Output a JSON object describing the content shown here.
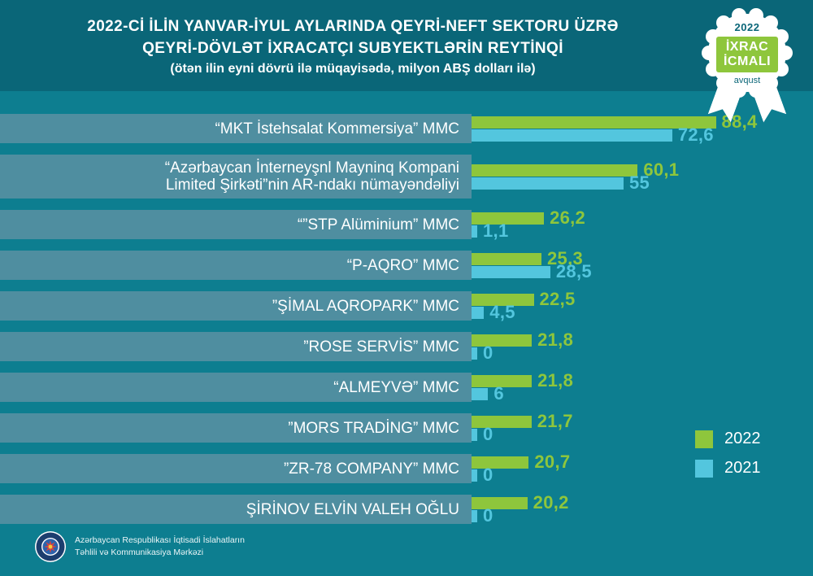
{
  "header": {
    "title_line1": "2022-Cİ İLİN YANVAR-İYUL AYLARINDA QEYRİ-NEFT SEKTORU ÜZRƏ",
    "title_line2": "QEYRİ-DÖVLƏT İXRACATÇI SUBYEKTLƏRİN REYTİNQİ",
    "subtitle": "(ötən ilin eyni dövrü ilə müqayisədə, milyon ABŞ dolları ilə)",
    "badge": {
      "year": "2022",
      "title_line1": "İXRAC",
      "title_line2": "İCMALI",
      "month": "avqust"
    }
  },
  "colors": {
    "background": "#0d7e90",
    "header_band": "#0a6678",
    "label_band": "#4f8ea0",
    "green_2022": "#8ec63c",
    "cyan_2021": "#53c6de"
  },
  "chart_data": {
    "type": "bar",
    "orientation": "horizontal",
    "title": "2022-Cİ İLİN YANVAR-İYUL AYLARINDA QEYRİ-NEFT SEKTORU ÜZRƏ QEYRİ-DÖVLƏT İXRACATÇI SUBYEKTLƏRİN REYTİNQİ",
    "subtitle": "(ötən ilin eyni dövrü ilə müqayisədə, milyon ABŞ dolları ilə)",
    "unit": "milyon ABŞ dolları",
    "legend_position": "right",
    "xlim": [
      0,
      100
    ],
    "categories": [
      {
        "lines": [
          "“MKT İstehsalat Kommersiya” MMC"
        ]
      },
      {
        "lines": [
          "“Azərbaycan İnterneyşnl Mayninq Kompani",
          "Limited Şirkəti”nin AR-ndakı nümayəndəliyi"
        ]
      },
      {
        "lines": [
          "“”STP Alüminium” MMC"
        ]
      },
      {
        "lines": [
          "“P-AQRO” MMC"
        ]
      },
      {
        "lines": [
          "”ŞİMAL AQROPARK” MMC"
        ]
      },
      {
        "lines": [
          "”ROSE SERVİS” MMC"
        ]
      },
      {
        "lines": [
          "“ALMEYVƏ” MMC"
        ]
      },
      {
        "lines": [
          "”MORS TRADİNG” MMC"
        ]
      },
      {
        "lines": [
          "”ZR-78 COMPANY” MMC"
        ]
      },
      {
        "lines": [
          "ŞİRİNOV ELVİN VALEH OĞLU"
        ]
      }
    ],
    "series": [
      {
        "name": "2022",
        "color": "#8ec63c",
        "values": [
          88.4,
          60.1,
          26.2,
          25.3,
          22.5,
          21.8,
          21.8,
          21.7,
          20.7,
          20.2
        ],
        "labels": [
          "88,4",
          "60,1",
          "26,2",
          "25,3",
          "22,5",
          "21,8",
          "21,8",
          "21,7",
          "20,7",
          "20,2"
        ]
      },
      {
        "name": "2021",
        "color": "#53c6de",
        "values": [
          72.6,
          55,
          1.1,
          28.5,
          4.5,
          0,
          6,
          0,
          0,
          0
        ],
        "labels": [
          "72,6",
          "55",
          "1,1",
          "28,5",
          "4,5",
          "0",
          "6",
          "0",
          "0",
          "0"
        ]
      }
    ]
  },
  "footer": {
    "org_line1": "Azərbaycan Respublikası İqtisadi İslahatların",
    "org_line2": "Təhlili və Kommunikasiya Mərkəzi"
  }
}
